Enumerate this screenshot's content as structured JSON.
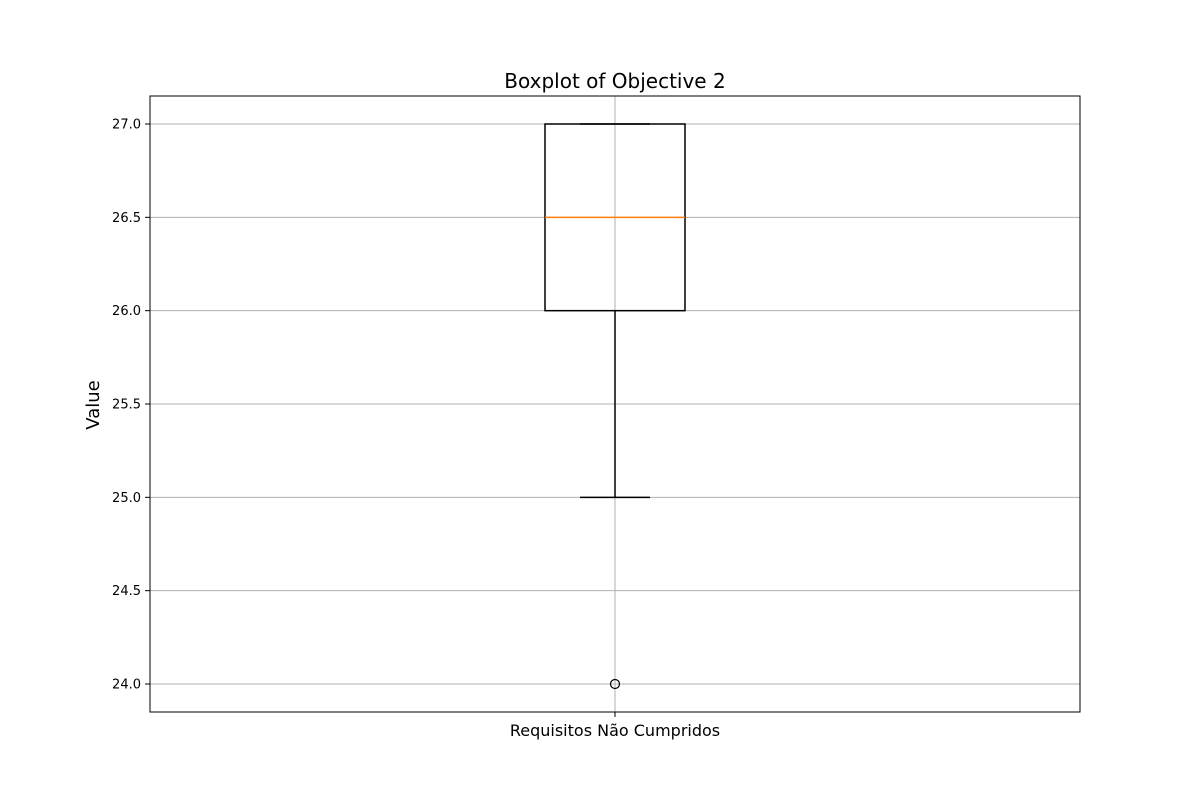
{
  "chart_data": {
    "type": "boxplot",
    "title": "Boxplot of Objective 2",
    "ylabel": "Value",
    "categories": [
      "Requisitos Não Cumpridos"
    ],
    "series": [
      {
        "category": "Requisitos Não Cumpridos",
        "whisker_low": 25.0,
        "q1": 26.0,
        "median": 26.5,
        "q3": 27.0,
        "whisker_high": 27.0,
        "outliers": [
          24.0
        ]
      }
    ],
    "ylim": [
      23.85,
      27.15
    ],
    "yticks": [
      "24.0",
      "24.5",
      "25.0",
      "25.5",
      "26.0",
      "26.5",
      "27.0"
    ],
    "grid": true,
    "colors": {
      "box": "#000000",
      "median": "#ff7f0e",
      "grid": "#b0b0b0"
    }
  }
}
